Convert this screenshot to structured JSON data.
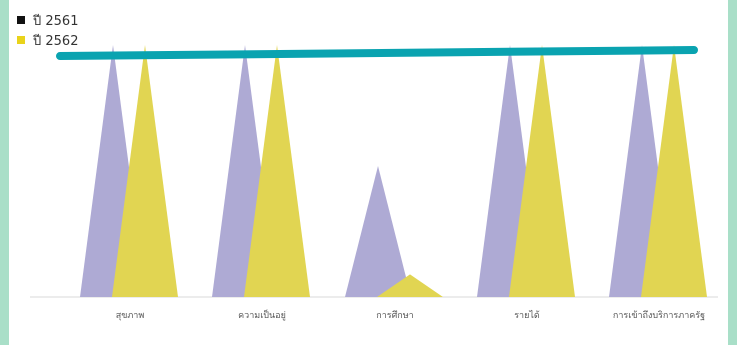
{
  "chart_data": {
    "type": "area",
    "categories": [
      "สุขภาพ",
      "ความเป็นอยู่",
      "การศึกษา",
      "รายได้",
      "การเข้าถึงบริการภาครัฐ"
    ],
    "series": [
      {
        "name": "ปี 2561",
        "values": [
          100,
          100,
          52,
          100,
          100
        ],
        "color": "#aeaad4",
        "legend_color": "#111111"
      },
      {
        "name": "ปี 2562",
        "values": [
          100,
          100,
          9,
          100,
          100
        ],
        "color": "#e1d552",
        "legend_color": "#e9d31a"
      }
    ],
    "ylim": [
      0,
      100
    ],
    "grid": false,
    "legend_position": "top-left",
    "annotation_line": {
      "y": 98,
      "color": "#0aa3b0"
    }
  }
}
